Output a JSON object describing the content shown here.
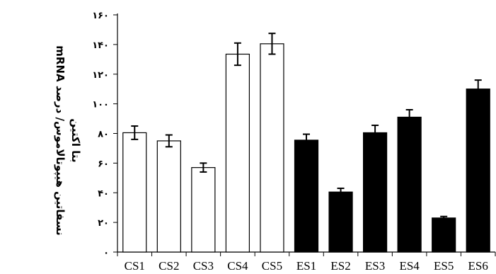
{
  "chart_data": {
    "type": "bar",
    "title": "",
    "xlabel": "",
    "ylabel_lines": [
      "mRNA نسفاتین هیپوتالاموس/ درصد",
      "بتا اکتین"
    ],
    "ylim": [
      0,
      160
    ],
    "yticks": [
      0,
      20,
      40,
      60,
      80,
      100,
      120,
      140,
      160
    ],
    "ytick_labels": [
      "۰",
      "۲۰",
      "۴۰",
      "۶۰",
      "۸۰",
      "۱۰۰",
      "۱۲۰",
      "۱۴۰",
      "۱۶۰"
    ],
    "grid": false,
    "legend": "none",
    "categories": [
      "CS1",
      "CS2",
      "CS3",
      "CS4",
      "CS5",
      "ES1",
      "ES2",
      "ES3",
      "ES4",
      "ES5",
      "ES6"
    ],
    "values": [
      80.5,
      75,
      57,
      133.5,
      140.5,
      75.5,
      40.5,
      80.5,
      91,
      23,
      110
    ],
    "errors": [
      4.5,
      4,
      3,
      7.5,
      7,
      4,
      2.5,
      5,
      5,
      1,
      6
    ],
    "fills": [
      "#ffffff",
      "#ffffff",
      "#ffffff",
      "#ffffff",
      "#ffffff",
      "#000000",
      "#000000",
      "#000000",
      "#000000",
      "#000000",
      "#000000"
    ],
    "stroke_color": "#000000"
  }
}
